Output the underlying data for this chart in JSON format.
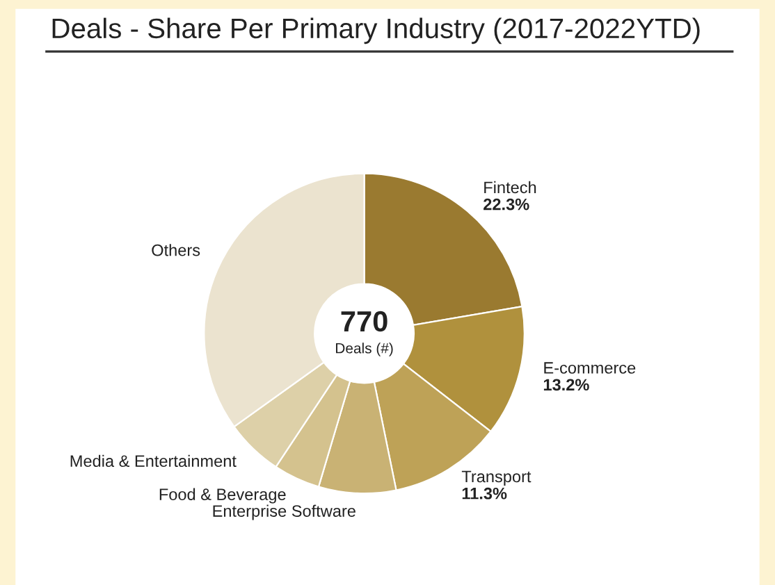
{
  "chart_data": {
    "type": "donut",
    "title": "Deals - Share Per Primary Industry (2017-2022YTD)",
    "categories": [
      "Fintech",
      "E-commerce",
      "Transport",
      "Enterprise Software",
      "Food & Beverage",
      "Media & Entertainment",
      "Others"
    ],
    "values": [
      22.3,
      13.2,
      11.3,
      7.8,
      4.7,
      5.8,
      34.9
    ],
    "value_labels": [
      "22.3%",
      "13.2%",
      "11.3%",
      null,
      null,
      null,
      null
    ],
    "colors": [
      "#9a7a30",
      "#b0913d",
      "#bea257",
      "#c9b274",
      "#d4c28e",
      "#ddd0a8",
      "#ebe3cf"
    ],
    "annotations": [
      "770",
      "Deals (#)"
    ],
    "legend": false
  }
}
